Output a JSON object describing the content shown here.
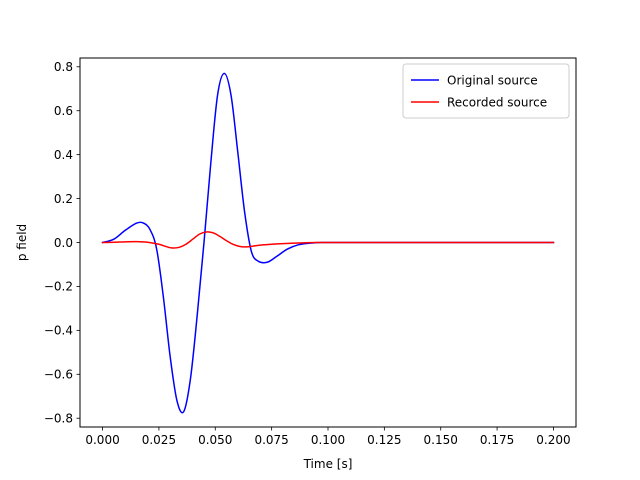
{
  "chart_data": {
    "type": "line",
    "title": "",
    "xlabel": "Time [s]",
    "ylabel": "p field",
    "xlim": [
      -0.01,
      0.21
    ],
    "ylim": [
      -0.84,
      0.84
    ],
    "x_ticks": [
      0.0,
      0.025,
      0.05,
      0.075,
      0.1,
      0.125,
      0.15,
      0.175,
      0.2
    ],
    "x_tick_labels": [
      "0.000",
      "0.025",
      "0.050",
      "0.075",
      "0.100",
      "0.125",
      "0.150",
      "0.175",
      "0.200"
    ],
    "y_ticks": [
      -0.8,
      -0.6,
      -0.4,
      -0.2,
      0.0,
      0.2,
      0.4,
      0.6,
      0.8
    ],
    "y_tick_labels": [
      "−0.8",
      "−0.6",
      "−0.4",
      "−0.2",
      "0.0",
      "0.2",
      "0.4",
      "0.6",
      "0.8"
    ],
    "grid": false,
    "legend_position": "top-right",
    "series": [
      {
        "name": "Original source",
        "color": "#0000ff",
        "x": [
          0.0,
          0.005,
          0.01,
          0.015,
          0.018,
          0.021,
          0.024,
          0.027,
          0.03,
          0.033,
          0.036,
          0.039,
          0.042,
          0.045,
          0.048,
          0.051,
          0.054,
          0.057,
          0.06,
          0.063,
          0.066,
          0.069,
          0.073,
          0.077,
          0.082,
          0.087,
          0.092,
          0.097,
          0.1,
          0.125,
          0.15,
          0.175,
          0.2
        ],
        "y": [
          0.0,
          0.015,
          0.055,
          0.088,
          0.089,
          0.06,
          -0.03,
          -0.25,
          -0.52,
          -0.72,
          -0.77,
          -0.62,
          -0.33,
          0.0,
          0.36,
          0.67,
          0.77,
          0.67,
          0.41,
          0.14,
          -0.04,
          -0.085,
          -0.09,
          -0.065,
          -0.03,
          -0.01,
          -0.003,
          0.0,
          0.0,
          0.0,
          0.0,
          0.0,
          0.0
        ]
      },
      {
        "name": "Recorded source",
        "color": "#ff0000",
        "x": [
          0.0,
          0.005,
          0.01,
          0.015,
          0.02,
          0.025,
          0.028,
          0.031,
          0.034,
          0.037,
          0.04,
          0.043,
          0.046,
          0.049,
          0.052,
          0.055,
          0.058,
          0.061,
          0.064,
          0.067,
          0.07,
          0.075,
          0.08,
          0.085,
          0.09,
          0.095,
          0.1,
          0.125,
          0.15,
          0.175,
          0.2
        ],
        "y": [
          0.0,
          0.001,
          0.003,
          0.004,
          0.001,
          -0.008,
          -0.018,
          -0.025,
          -0.022,
          -0.008,
          0.015,
          0.038,
          0.048,
          0.044,
          0.028,
          0.008,
          -0.009,
          -0.018,
          -0.02,
          -0.016,
          -0.012,
          -0.008,
          -0.005,
          -0.003,
          -0.001,
          0.0,
          0.0,
          0.0,
          0.0,
          0.0,
          0.0
        ]
      }
    ]
  }
}
